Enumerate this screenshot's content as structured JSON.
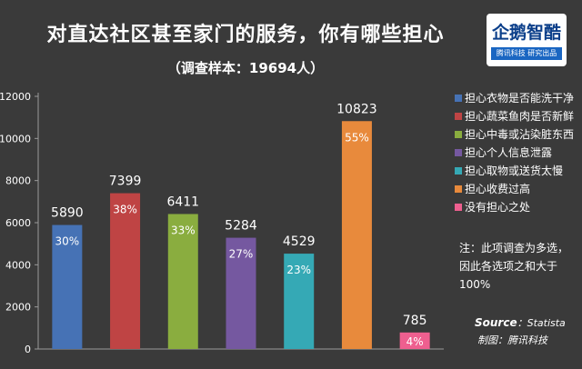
{
  "colors": {
    "background": "#3a3a3a",
    "axis": "#9a9a9a",
    "gridline": "#4a4a4a"
  },
  "logo": {
    "text": "企鹅智酷",
    "subtext": "腾讯科技  研究出品"
  },
  "chart_data": {
    "type": "bar",
    "title": "对直达社区甚至家门的服务，你有哪些担心",
    "subtitle": "（调查样本：19694人）",
    "categories": [
      "担心衣物是否能洗干净",
      "担心蔬菜鱼肉是否新鲜",
      "担心中毒或沾染脏东西",
      "担心个人信息泄露",
      "担心取物或送货太慢",
      "担心收费过高",
      "没有担心之处"
    ],
    "values": [
      5890,
      7399,
      6411,
      5284,
      4529,
      10823,
      785
    ],
    "value_labels": [
      "5890",
      "7399",
      "6411",
      "5284",
      "4529",
      "10823",
      "785"
    ],
    "percent_labels": [
      "30%",
      "38%",
      "33%",
      "27%",
      "23%",
      "55%",
      "4%"
    ],
    "colors": [
      "#4672b5",
      "#bf4444",
      "#8aad3f",
      "#7558a0",
      "#35a9b5",
      "#e88a3c",
      "#ee5f8f"
    ],
    "ylim": [
      0,
      12000
    ],
    "yticks": [
      0,
      2000,
      4000,
      6000,
      8000,
      10000,
      12000
    ],
    "ytick_labels": [
      "0",
      "2000",
      "4000",
      "6000",
      "8000",
      "10000",
      "12000"
    ],
    "xlabel": "",
    "ylabel": "",
    "legend_position": "right"
  },
  "note": "注：此项调查为多选，因此各选项之和大于100%",
  "source": {
    "key": "Source",
    "value": "：Statista"
  },
  "credit": "制图：腾讯科技"
}
